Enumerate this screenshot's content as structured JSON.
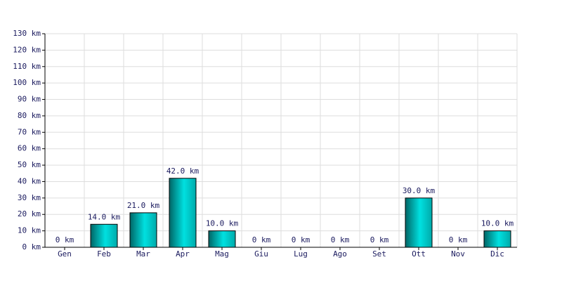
{
  "chart_data": {
    "type": "bar",
    "categories": [
      "Gen",
      "Feb",
      "Mar",
      "Apr",
      "Mag",
      "Giu",
      "Lug",
      "Ago",
      "Set",
      "Ott",
      "Nov",
      "Dic"
    ],
    "values": [
      0,
      14,
      21,
      42,
      10,
      0,
      0,
      0,
      0,
      30,
      0,
      10
    ],
    "value_labels": [
      "0 km",
      "14.0 km",
      "21.0 km",
      "42.0 km",
      "10.0 km",
      "0 km",
      "0 km",
      "0 km",
      "0 km",
      "30.0 km",
      "0 km",
      "10.0 km"
    ],
    "color": "#00cccc",
    "ylim": [
      0,
      130
    ],
    "yticks": [
      {
        "value": 0,
        "label": "0 km"
      },
      {
        "value": 10,
        "label": "10 km"
      },
      {
        "value": 20,
        "label": "20 km"
      },
      {
        "value": 30,
        "label": "30 km"
      },
      {
        "value": 40,
        "label": "40 km"
      },
      {
        "value": 50,
        "label": "50 km"
      },
      {
        "value": 60,
        "label": "60 km"
      },
      {
        "value": 70,
        "label": "70 km"
      },
      {
        "value": 80,
        "label": "80 km"
      },
      {
        "value": 90,
        "label": "90 km"
      },
      {
        "value": 100,
        "label": "100 km"
      },
      {
        "value": 110,
        "label": "110 km"
      },
      {
        "value": 120,
        "label": "120 km"
      },
      {
        "value": 130,
        "label": "130 km"
      }
    ],
    "grid": true
  }
}
